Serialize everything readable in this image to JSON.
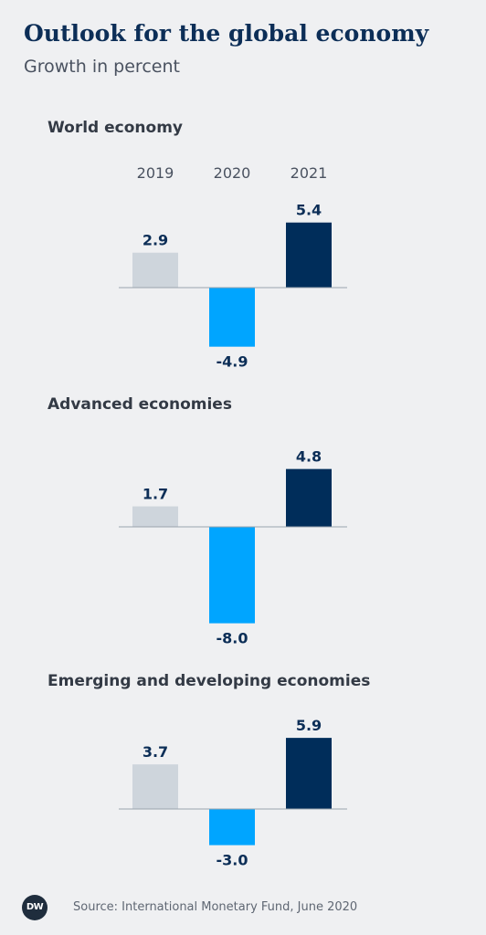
{
  "header": {
    "title": "Outlook for the global economy",
    "subtitle": "Growth in percent"
  },
  "colors": {
    "2019": "#ced5dc",
    "2020": "#00a5ff",
    "2021": "#002d5a",
    "label": "#0c2e57",
    "baseline": "#9aa3ad"
  },
  "chart_data": [
    {
      "type": "bar",
      "title": "World economy",
      "categories": [
        "2019",
        "2020",
        "2021"
      ],
      "values": [
        2.9,
        -4.9,
        5.4
      ]
    },
    {
      "type": "bar",
      "title": "Advanced economies",
      "categories": [
        "2019",
        "2020",
        "2021"
      ],
      "values": [
        1.7,
        -8.0,
        4.8
      ]
    },
    {
      "type": "bar",
      "title": "Emerging and developing economies",
      "categories": [
        "2019",
        "2020",
        "2021"
      ],
      "values": [
        3.7,
        -3.0,
        5.9
      ]
    }
  ],
  "footer": {
    "logo": "DW",
    "source": "Source: International Monetary Fund, June 2020"
  }
}
